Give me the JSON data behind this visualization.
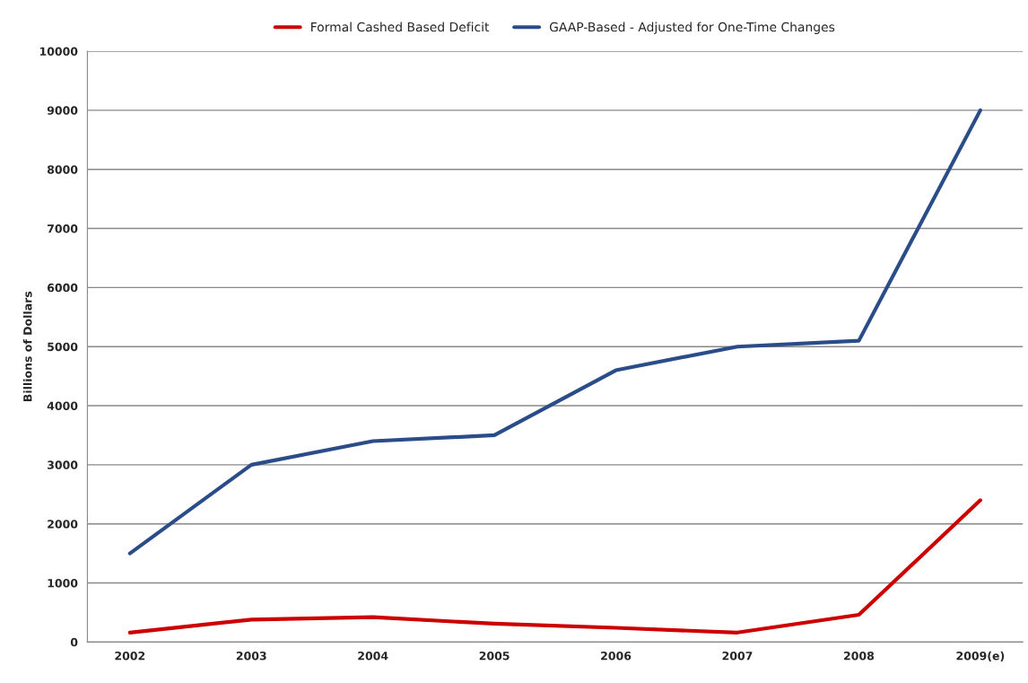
{
  "chart_data": {
    "type": "line",
    "ylabel": "Billions of Dollars",
    "categories": [
      "2002",
      "2003",
      "2004",
      "2005",
      "2006",
      "2007",
      "2008",
      "2009(e)"
    ],
    "series": [
      {
        "name": "Formal Cashed Based Deficit",
        "color": "#cc0000",
        "values": [
          160,
          380,
          420,
          310,
          240,
          160,
          460,
          2400
        ]
      },
      {
        "name": "GAAP-Based - Adjusted for One-Time Changes",
        "color": "#2a4d8a",
        "values": [
          1500,
          3000,
          3400,
          3500,
          4600,
          5000,
          5100,
          9000
        ]
      }
    ],
    "ylim": [
      0,
      10000
    ],
    "yticks": [
      0,
      1000,
      2000,
      3000,
      4000,
      5000,
      6000,
      7000,
      8000,
      9000,
      10000
    ],
    "grid": "y",
    "legend": "top",
    "marker": "none",
    "line_style": "solid"
  }
}
